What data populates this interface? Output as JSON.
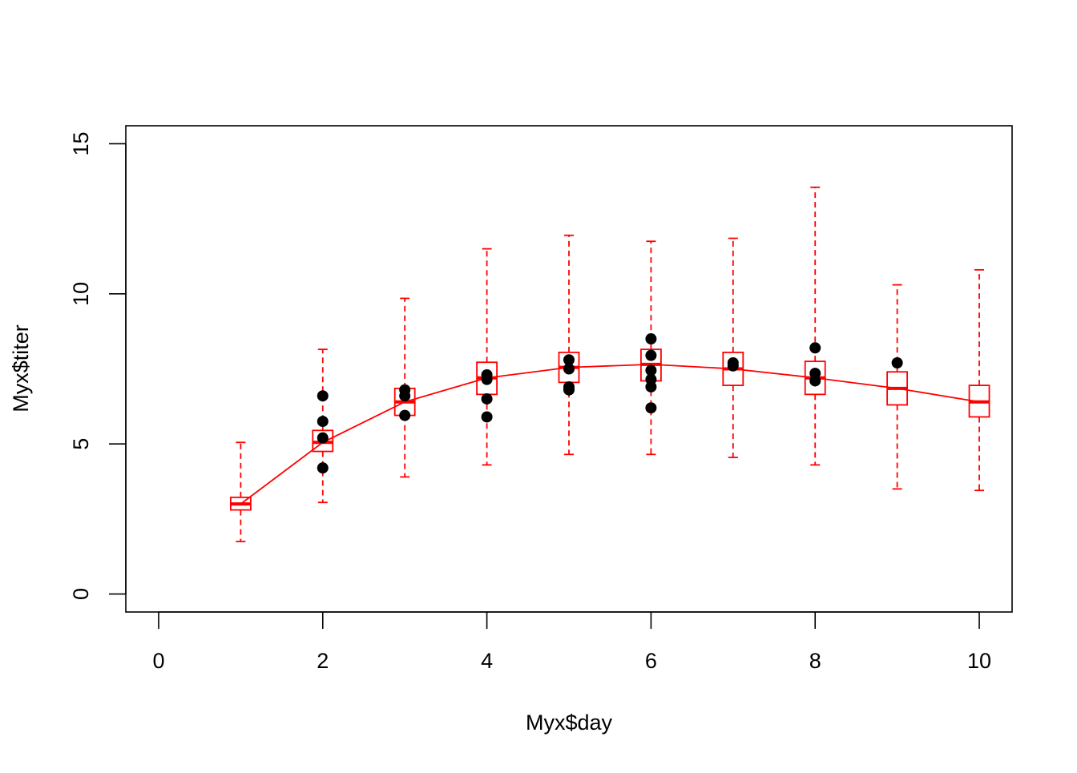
{
  "chart_data": {
    "type": "scatter",
    "title": "",
    "xlabel": "Myx$day",
    "ylabel": "Myx$titer",
    "xlim": [
      -0.4,
      10.4
    ],
    "ylim": [
      -0.6,
      15.6
    ],
    "xticks": [
      0,
      2,
      4,
      6,
      8,
      10
    ],
    "yticks": [
      0,
      5,
      10,
      15
    ],
    "grid": false,
    "legend": "none",
    "colors": {
      "points": "#000000",
      "boxes": "#ff0000",
      "curve": "#ff0000",
      "axes": "#000000"
    },
    "points": [
      {
        "x": 2,
        "y": 6.6
      },
      {
        "x": 2,
        "y": 5.75
      },
      {
        "x": 2,
        "y": 5.2
      },
      {
        "x": 2,
        "y": 4.2
      },
      {
        "x": 3,
        "y": 6.8
      },
      {
        "x": 3,
        "y": 6.6
      },
      {
        "x": 3,
        "y": 5.95
      },
      {
        "x": 4,
        "y": 7.3
      },
      {
        "x": 4,
        "y": 7.15
      },
      {
        "x": 4,
        "y": 6.5
      },
      {
        "x": 4,
        "y": 5.9
      },
      {
        "x": 5,
        "y": 7.8
      },
      {
        "x": 5,
        "y": 7.5
      },
      {
        "x": 5,
        "y": 6.9
      },
      {
        "x": 5,
        "y": 6.8
      },
      {
        "x": 6,
        "y": 8.5
      },
      {
        "x": 6,
        "y": 7.95
      },
      {
        "x": 6,
        "y": 7.45
      },
      {
        "x": 6,
        "y": 7.15
      },
      {
        "x": 6,
        "y": 6.9
      },
      {
        "x": 6,
        "y": 6.2
      },
      {
        "x": 7,
        "y": 7.7
      },
      {
        "x": 7,
        "y": 7.6
      },
      {
        "x": 8,
        "y": 8.2
      },
      {
        "x": 8,
        "y": 7.35
      },
      {
        "x": 8,
        "y": 7.1
      },
      {
        "x": 9,
        "y": 7.7
      }
    ],
    "boxes": [
      {
        "x": 1,
        "median": 3.0,
        "q1": 2.8,
        "q3": 3.22,
        "lower": 1.75,
        "upper": 5.05
      },
      {
        "x": 2,
        "median": 5.05,
        "q1": 4.75,
        "q3": 5.45,
        "lower": 3.05,
        "upper": 8.15
      },
      {
        "x": 3,
        "median": 6.4,
        "q1": 5.95,
        "q3": 6.85,
        "lower": 3.9,
        "upper": 9.85
      },
      {
        "x": 4,
        "median": 7.2,
        "q1": 6.65,
        "q3": 7.72,
        "lower": 4.3,
        "upper": 11.5
      },
      {
        "x": 5,
        "median": 7.55,
        "q1": 7.05,
        "q3": 8.05,
        "lower": 4.65,
        "upper": 11.95
      },
      {
        "x": 6,
        "median": 7.65,
        "q1": 7.1,
        "q3": 8.15,
        "lower": 4.65,
        "upper": 11.75
      },
      {
        "x": 7,
        "median": 7.5,
        "q1": 6.95,
        "q3": 8.05,
        "lower": 4.55,
        "upper": 11.85
      },
      {
        "x": 8,
        "median": 7.2,
        "q1": 6.65,
        "q3": 7.75,
        "lower": 4.3,
        "upper": 13.55
      },
      {
        "x": 9,
        "median": 6.85,
        "q1": 6.3,
        "q3": 7.4,
        "lower": 3.5,
        "upper": 10.3
      },
      {
        "x": 10,
        "median": 6.4,
        "q1": 5.9,
        "q3": 6.95,
        "lower": 3.45,
        "upper": 10.8
      }
    ],
    "curve": [
      {
        "x": 1,
        "y": 3.0
      },
      {
        "x": 2,
        "y": 5.05
      },
      {
        "x": 3,
        "y": 6.4
      },
      {
        "x": 4,
        "y": 7.2
      },
      {
        "x": 5,
        "y": 7.55
      },
      {
        "x": 6,
        "y": 7.65
      },
      {
        "x": 7,
        "y": 7.5
      },
      {
        "x": 8,
        "y": 7.2
      },
      {
        "x": 9,
        "y": 6.85
      },
      {
        "x": 10,
        "y": 6.4
      }
    ]
  }
}
